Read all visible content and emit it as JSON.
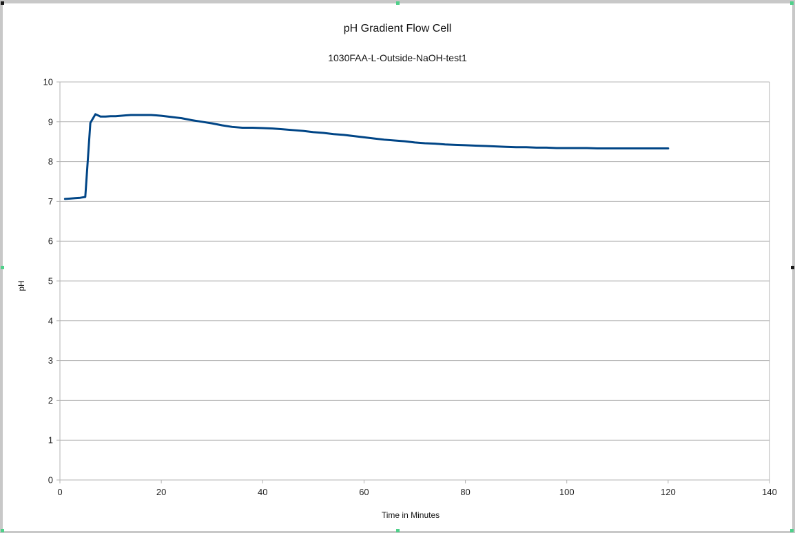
{
  "colors": {
    "series": "#004586",
    "grid": "#b3b3b3",
    "frame_bg": "#ffffff",
    "window_bg": "#c8c8c8"
  },
  "chart_data": {
    "type": "line",
    "title": "pH Gradient Flow Cell",
    "subtitle": "1030FAA-L-Outside-NaOH-test1",
    "xlabel": "Time in Minutes",
    "ylabel": "pH",
    "xlim": [
      0,
      140
    ],
    "ylim": [
      0,
      10
    ],
    "xticks": [
      0,
      20,
      40,
      60,
      80,
      100,
      120,
      140
    ],
    "yticks": [
      0,
      1,
      2,
      3,
      4,
      5,
      6,
      7,
      8,
      9,
      10
    ],
    "grid": true,
    "legend": "none",
    "series": [
      {
        "x": [
          1,
          2,
          3,
          4,
          5,
          6,
          7,
          8,
          9,
          10,
          11,
          12,
          13,
          14,
          15,
          16,
          17,
          18,
          19,
          20,
          22,
          24,
          26,
          28,
          30,
          32,
          34,
          36,
          38,
          40,
          42,
          44,
          46,
          48,
          50,
          52,
          54,
          56,
          58,
          60,
          62,
          64,
          66,
          68,
          70,
          72,
          74,
          76,
          78,
          80,
          82,
          84,
          86,
          88,
          90,
          92,
          94,
          96,
          98,
          100,
          102,
          104,
          106,
          108,
          110,
          112,
          114,
          116,
          118,
          120
        ],
        "values": [
          7.06,
          7.07,
          7.08,
          7.09,
          7.11,
          8.97,
          9.19,
          9.13,
          9.13,
          9.14,
          9.14,
          9.15,
          9.16,
          9.17,
          9.17,
          9.17,
          9.17,
          9.17,
          9.16,
          9.15,
          9.12,
          9.09,
          9.04,
          9.0,
          8.96,
          8.91,
          8.87,
          8.85,
          8.85,
          8.84,
          8.83,
          8.81,
          8.79,
          8.77,
          8.74,
          8.72,
          8.69,
          8.67,
          8.64,
          8.61,
          8.58,
          8.55,
          8.53,
          8.51,
          8.48,
          8.46,
          8.45,
          8.43,
          8.42,
          8.41,
          8.4,
          8.39,
          8.38,
          8.37,
          8.36,
          8.36,
          8.35,
          8.35,
          8.34,
          8.34,
          8.34,
          8.34,
          8.33,
          8.33,
          8.33,
          8.33,
          8.33,
          8.33,
          8.33,
          8.33
        ]
      }
    ]
  }
}
